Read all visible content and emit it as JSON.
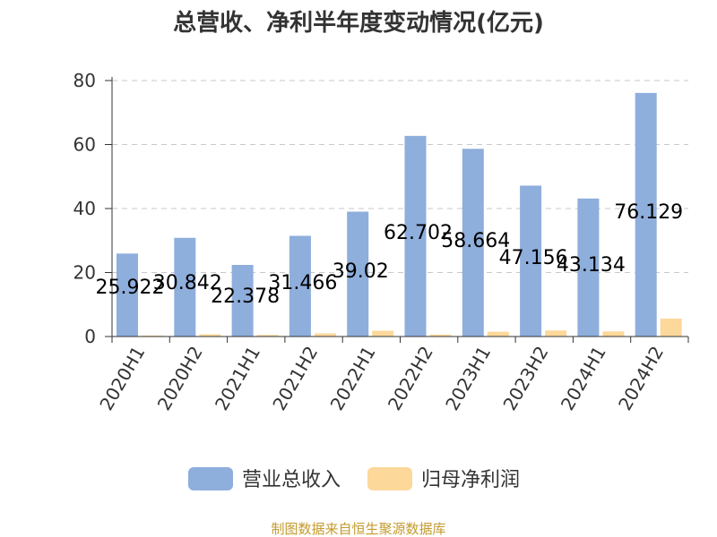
{
  "chart_data": {
    "type": "bar",
    "title": "总营收、净利半年度变动情况(亿元)",
    "categories": [
      "2020H1",
      "2020H2",
      "2021H1",
      "2021H2",
      "2022H1",
      "2022H2",
      "2023H1",
      "2023H2",
      "2024H1",
      "2024H2"
    ],
    "series": [
      {
        "name": "营业总收入",
        "color": "#8eaedc",
        "values": [
          25.922,
          30.842,
          22.378,
          31.466,
          39.02,
          62.702,
          58.664,
          47.156,
          43.134,
          76.129
        ],
        "labels": [
          "25.922",
          "30.842",
          "22.378",
          "31.466",
          "39.02",
          "62.702",
          "58.664",
          "47.156",
          "43.134",
          "76.129"
        ]
      },
      {
        "name": "归母净利润",
        "color": "#fdd89b",
        "values": [
          0.3,
          0.7,
          0.5,
          1.0,
          1.8,
          0.6,
          1.5,
          1.9,
          1.6,
          5.6
        ]
      }
    ],
    "yticks": [
      0,
      20,
      40,
      60,
      80
    ],
    "ylim": [
      0,
      80
    ],
    "grid": true,
    "legend": "bottom"
  },
  "source": "制图数据来自恒生聚源数据库"
}
